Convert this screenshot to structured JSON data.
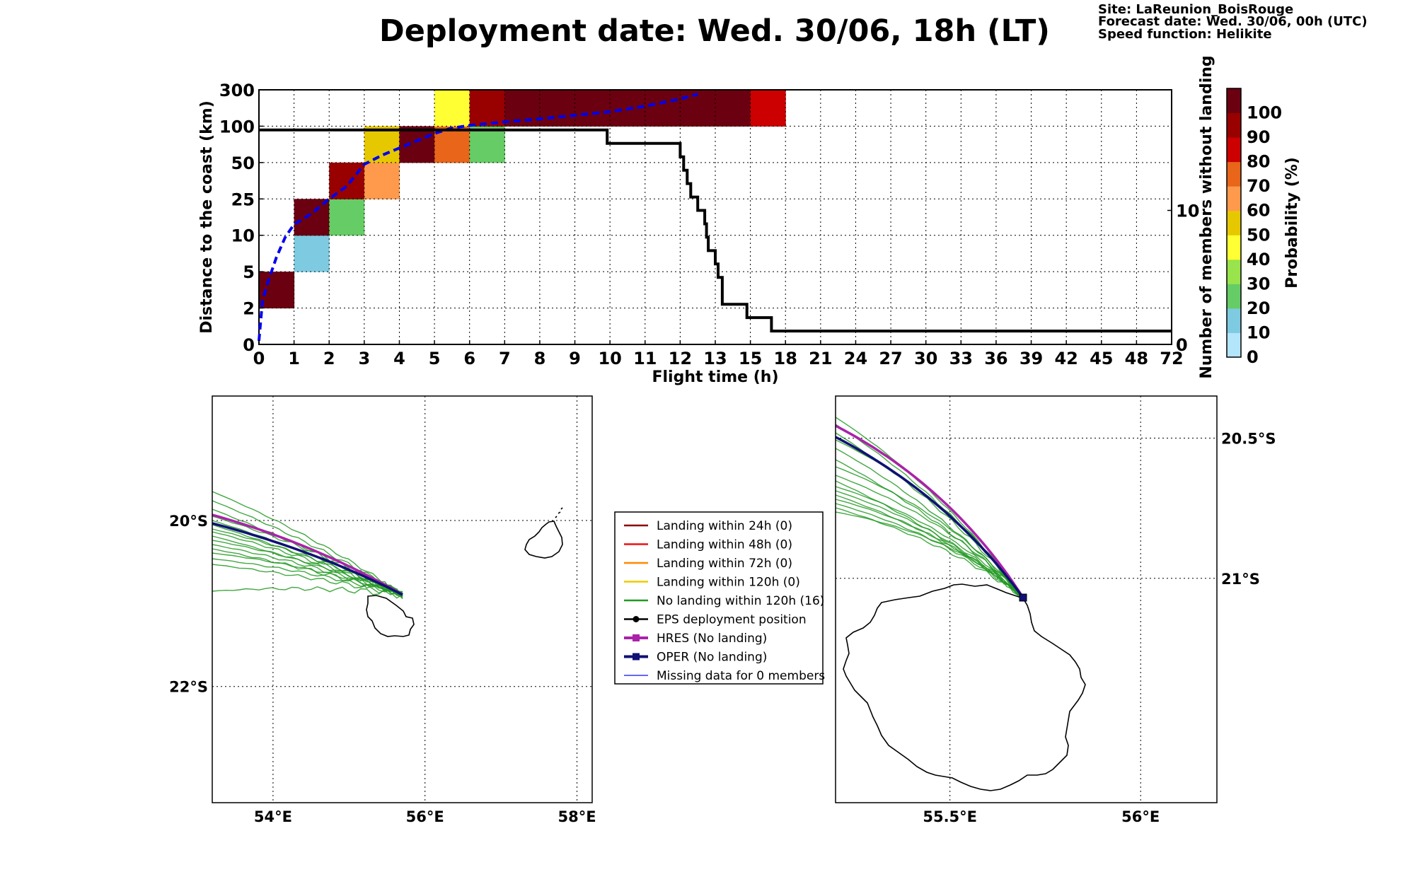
{
  "title": "Deployment date: Wed. 30/06, 18h (LT)",
  "info": {
    "site": "Site: LaReunion_BoisRouge",
    "forecast": "Forecast date: Wed. 30/06, 00h (UTC)",
    "speed": "Speed function: Helikite"
  },
  "colors": {
    "levels": [
      "#b3e5fb",
      "#7ecae1",
      "#66cc66",
      "#99e34c",
      "#ffff33",
      "#e6c800",
      "#ff9a4d",
      "#e8651a",
      "#cc0000",
      "#990000",
      "#6b0010"
    ],
    "mean_line": "#0000ee",
    "members_line": "#000000",
    "ens_track": "#229922",
    "hres": "#aa22aa",
    "oper": "#101077"
  },
  "chart_data": [
    {
      "type": "heatmap",
      "xlabel": "Flight time (h)",
      "ylabel": "Distance to the coast (km)",
      "ylabel_right": "Number of members without landing",
      "x_ticks": [
        "0",
        "1",
        "2",
        "3",
        "4",
        "5",
        "6",
        "7",
        "8",
        "9",
        "10",
        "11",
        "12",
        "13",
        "15",
        "18",
        "21",
        "24",
        "27",
        "30",
        "33",
        "36",
        "39",
        "42",
        "45",
        "48",
        "72"
      ],
      "y_ticks": [
        "0",
        "2",
        "5",
        "10",
        "25",
        "50",
        "100",
        "300"
      ],
      "y_right_ticks": [
        "0",
        "10"
      ],
      "y_right_range": [
        0,
        19
      ],
      "cells": [
        {
          "x": 0,
          "y": 1,
          "prob": 95
        },
        {
          "x": 1,
          "y": 2,
          "prob": 5
        },
        {
          "x": 1,
          "y": 3,
          "prob": 95
        },
        {
          "x": 2,
          "y": 3,
          "prob": 15
        },
        {
          "x": 2,
          "y": 4,
          "prob": 85
        },
        {
          "x": 3,
          "y": 4,
          "prob": 55
        },
        {
          "x": 3,
          "y": 5,
          "prob": 45
        },
        {
          "x": 4,
          "y": 5,
          "prob": 95
        },
        {
          "x": 5,
          "y": 5,
          "prob": 65
        },
        {
          "x": 5,
          "y": 6,
          "prob": 35
        },
        {
          "x": 6,
          "y": 5,
          "prob": 15
        },
        {
          "x": 6,
          "y": 6,
          "prob": 85
        },
        {
          "x": 7,
          "y": 6,
          "prob": 95
        },
        {
          "x": 8,
          "y": 6,
          "prob": 95
        },
        {
          "x": 9,
          "y": 6,
          "prob": 95
        },
        {
          "x": 10,
          "y": 6,
          "prob": 95
        },
        {
          "x": 11,
          "y": 6,
          "prob": 95
        },
        {
          "x": 12,
          "y": 6,
          "prob": 95
        },
        {
          "x": 13,
          "y": 6,
          "prob": 95
        },
        {
          "x": 14,
          "y": 6,
          "prob": 75
        }
      ],
      "mean_distance": {
        "x": [
          0,
          0.1,
          0.25,
          0.5,
          0.75,
          1,
          1.5,
          2,
          2.5,
          3,
          3.5,
          4,
          4.5,
          5,
          5.5,
          6,
          7,
          8,
          9,
          10,
          11,
          12,
          12.5
        ],
        "y": [
          0.1,
          1.2,
          1.7,
          2.4,
          2.95,
          3.3,
          3.6,
          4.0,
          4.35,
          4.95,
          5.2,
          5.4,
          5.6,
          5.8,
          5.95,
          6.02,
          6.12,
          6.2,
          6.3,
          6.4,
          6.55,
          6.75,
          6.88
        ]
      },
      "members_without_landing": {
        "x": [
          0,
          9.85,
          9.92,
          11.9,
          12.0,
          12.1,
          12.2,
          12.3,
          12.5,
          12.7,
          12.75,
          12.8,
          13.0,
          13.08,
          13.2,
          13.8,
          13.9,
          14.3,
          14.6
        ],
        "y": [
          16,
          16,
          15,
          15,
          14,
          13,
          12,
          11,
          10,
          9,
          8,
          7,
          6,
          5,
          3,
          3,
          2,
          2,
          1
        ]
      },
      "colorbar": {
        "label": "Probability (%)",
        "ticks": [
          "0",
          "10",
          "20",
          "30",
          "40",
          "50",
          "60",
          "70",
          "80",
          "90",
          "100"
        ]
      }
    },
    {
      "type": "map",
      "lon_range": [
        53.2,
        58.2
      ],
      "lat_range": [
        -23.4,
        -18.5
      ],
      "lon_ticks": [
        {
          "v": 54,
          "label": "54°E"
        },
        {
          "v": 56,
          "label": "56°E"
        },
        {
          "v": 58,
          "label": "58°E"
        }
      ],
      "lat_ticks": [
        {
          "v": -20,
          "label": "20°S"
        },
        {
          "v": -22,
          "label": "22°S"
        }
      ]
    },
    {
      "type": "map",
      "lon_range": [
        55.2,
        56.2
      ],
      "lat_range": [
        -21.8,
        -20.35
      ],
      "lon_ticks": [
        {
          "v": 55.5,
          "label": "55.5°E"
        },
        {
          "v": 56,
          "label": "56°E"
        }
      ],
      "lat_ticks": [
        {
          "v": -20.5,
          "label": "20.5°S"
        },
        {
          "v": -21,
          "label": "21°S"
        }
      ]
    }
  ],
  "legend": [
    {
      "label": "Landing within 24h (0)",
      "color": "#8b0000",
      "marker": "none"
    },
    {
      "label": "Landing within 48h (0)",
      "color": "#ee1111",
      "marker": "none"
    },
    {
      "label": "Landing within 72h (0)",
      "color": "#ff8800",
      "marker": "none"
    },
    {
      "label": "Landing within 120h (0)",
      "color": "#eecc00",
      "marker": "none"
    },
    {
      "label": "No landing within 120h (16)",
      "color": "#229922",
      "marker": "none"
    },
    {
      "label": "EPS deployment position",
      "color": "#000000",
      "marker": "circle"
    },
    {
      "label": "HRES (No landing)",
      "color": "#aa22aa",
      "marker": "square"
    },
    {
      "label": "OPER (No landing)",
      "color": "#101077",
      "marker": "square"
    },
    {
      "label": "Missing data for 0 members",
      "color": "#3333ff",
      "marker": "none"
    }
  ]
}
